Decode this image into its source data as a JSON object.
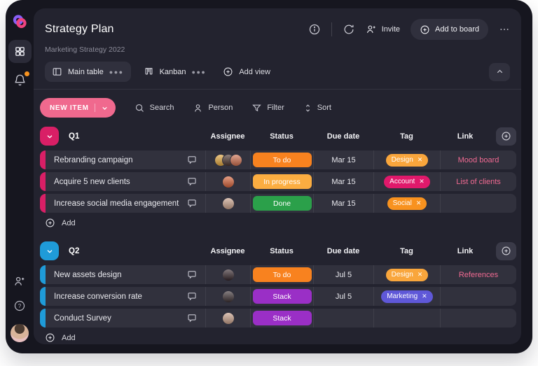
{
  "header": {
    "title": "Strategy Plan",
    "subtitle": "Marketing Strategy 2022",
    "actions": {
      "invite": "Invite",
      "add_to_board": "Add to board"
    }
  },
  "tabs": {
    "items": [
      {
        "label": "Main table",
        "active": true
      },
      {
        "label": "Kanban",
        "active": false
      }
    ],
    "add_view": "Add view"
  },
  "toolbar": {
    "new_item": "NEW ITEM",
    "search": "Search",
    "person": "Person",
    "filter": "Filter",
    "sort": "Sort"
  },
  "table": {
    "columns": [
      "Assignee",
      "Status",
      "Due date",
      "Tag",
      "Link"
    ],
    "add_label": "Add",
    "groups": [
      {
        "name": "Q1",
        "accent": "#d91f66",
        "rows": [
          {
            "task": "Rebranding campaign",
            "avatars": [
              "#e3a73e",
              "#4a332c",
              "#cf6f4e"
            ],
            "status": {
              "label": "To do",
              "color": "#f8821f"
            },
            "due": "Mar 15",
            "tag": {
              "label": "Design",
              "color": "#f9a63c"
            },
            "link": "Mood board"
          },
          {
            "task": "Acquire 5 new clients",
            "avatars": [
              "#d8643a"
            ],
            "status": {
              "label": "In progress",
              "color": "#fbad41"
            },
            "due": "Mar 15",
            "tag": {
              "label": "Account",
              "color": "#e0196b"
            },
            "link": "List of clients"
          },
          {
            "task": "Increase social media engagement",
            "avatars": [
              "#c9a18b"
            ],
            "status": {
              "label": "Done",
              "color": "#2ba04a"
            },
            "due": "Mar 15",
            "tag": {
              "label": "Social",
              "color": "#f8921f"
            },
            "link": ""
          }
        ]
      },
      {
        "name": "Q2",
        "accent": "#1f9bd8",
        "rows": [
          {
            "task": "New assets design",
            "avatars": [
              "#35262b"
            ],
            "status": {
              "label": "To do",
              "color": "#f8821f"
            },
            "due": "Jul 5",
            "tag": {
              "label": "Design",
              "color": "#f9a63c"
            },
            "link": "References"
          },
          {
            "task": "Increase conversion rate",
            "avatars": [
              "#3d3134"
            ],
            "status": {
              "label": "Stack",
              "color": "#9a2fc6"
            },
            "due": "Jul 5",
            "tag": {
              "label": "Marketing",
              "color": "#5f58d8"
            },
            "link": ""
          },
          {
            "task": "Conduct Survey",
            "avatars": [
              "#c9a18b"
            ],
            "status": {
              "label": "Stack",
              "color": "#9a2fc6"
            },
            "due": "",
            "tag": null,
            "link": ""
          }
        ]
      }
    ]
  },
  "colors": {
    "link": "#f06a92",
    "new_item_button": "#f0698e",
    "notification_badge": "#f8931f"
  }
}
